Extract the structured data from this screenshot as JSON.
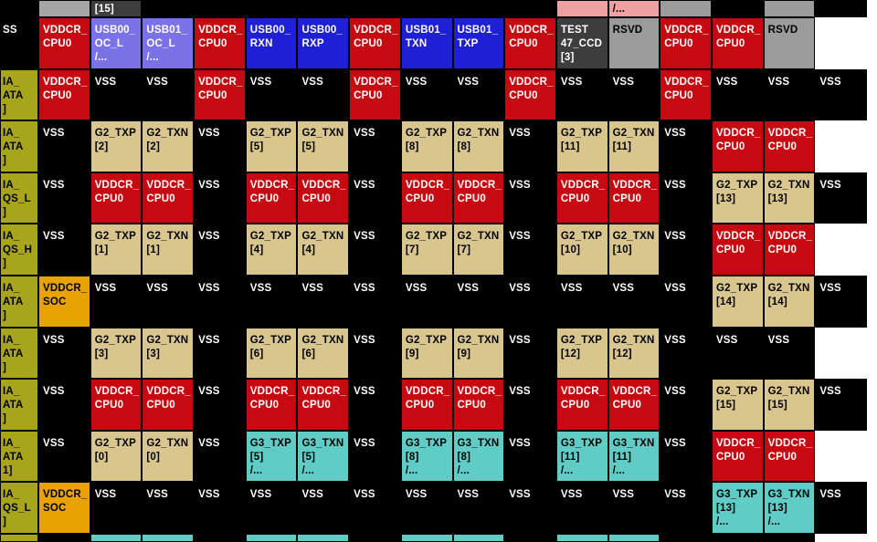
{
  "palette": {
    "red": "#c70a12",
    "blue": "#1f1fd6",
    "purple": "#7c72e8",
    "tan": "#d9c68f",
    "teal": "#5fccc6",
    "olive": "#a8a41c",
    "orange": "#e8a201",
    "gray": "#9b9b9b",
    "gray_light": "#a5a5a5",
    "dark": "#3d3d3d",
    "pink": "#efa0a0",
    "black": "#000000",
    "white": "#ffffff"
  },
  "light_text_colors": [
    "red",
    "blue",
    "purple",
    "dark",
    "black"
  ],
  "grid": {
    "columns": 17,
    "rows": [
      [
        [
          "black",
          ""
        ],
        [
          "gray_light",
          ""
        ],
        [
          "dark",
          "[15]"
        ],
        [
          "black",
          ""
        ],
        [
          "black",
          ""
        ],
        [
          "black",
          ""
        ],
        [
          "black",
          ""
        ],
        [
          "black",
          ""
        ],
        [
          "black",
          ""
        ],
        [
          "black",
          ""
        ],
        [
          "black",
          ""
        ],
        [
          "pink",
          ""
        ],
        [
          "pink",
          "/..."
        ],
        [
          "gray",
          ""
        ],
        [
          "black",
          ""
        ],
        [
          "gray",
          ""
        ],
        [
          "black",
          ""
        ]
      ],
      [
        [
          "black",
          "SS"
        ],
        [
          "red",
          "VDDCR_\nCPU0"
        ],
        [
          "purple",
          "USB00_\nOC_L\n/..."
        ],
        [
          "purple",
          "USB01_\nOC_L\n/..."
        ],
        [
          "red",
          "VDDCR_\nCPU0"
        ],
        [
          "blue",
          "USB00_\nRXN"
        ],
        [
          "blue",
          "USB00_\nRXP"
        ],
        [
          "red",
          "VDDCR_\nCPU0"
        ],
        [
          "blue",
          "USB01_\nTXN"
        ],
        [
          "blue",
          "USB01_\nTXP"
        ],
        [
          "red",
          "VDDCR_\nCPU0"
        ],
        [
          "dark",
          "TEST\n47_CCD\n[3]"
        ],
        [
          "gray",
          "RSVD"
        ],
        [
          "red",
          "VDDCR_\nCPU0"
        ],
        [
          "red",
          "VDDCR_\nCPU0"
        ],
        [
          "gray",
          "RSVD"
        ],
        [
          "white",
          ""
        ]
      ],
      [
        [
          "olive",
          "IA_\nATA\n]"
        ],
        [
          "red",
          "VDDCR_\nCPU0"
        ],
        [
          "black",
          "VSS"
        ],
        [
          "black",
          "VSS"
        ],
        [
          "red",
          "VDDCR_\nCPU0"
        ],
        [
          "black",
          "VSS"
        ],
        [
          "black",
          "VSS"
        ],
        [
          "red",
          "VDDCR_\nCPU0"
        ],
        [
          "black",
          "VSS"
        ],
        [
          "black",
          "VSS"
        ],
        [
          "red",
          "VDDCR_\nCPU0"
        ],
        [
          "black",
          "VSS"
        ],
        [
          "black",
          "VSS"
        ],
        [
          "red",
          "VDDCR_\nCPU0"
        ],
        [
          "black",
          "VSS"
        ],
        [
          "black",
          "VSS"
        ],
        [
          "black",
          "VSS"
        ]
      ],
      [
        [
          "olive",
          "IA_\nATA\n]"
        ],
        [
          "black",
          "VSS"
        ],
        [
          "tan",
          "G2_TXP\n[2]"
        ],
        [
          "tan",
          "G2_TXN\n[2]"
        ],
        [
          "black",
          "VSS"
        ],
        [
          "tan",
          "G2_TXP\n[5]"
        ],
        [
          "tan",
          "G2_TXN\n[5]"
        ],
        [
          "black",
          "VSS"
        ],
        [
          "tan",
          "G2_TXP\n[8]"
        ],
        [
          "tan",
          "G2_TXN\n[8]"
        ],
        [
          "black",
          "VSS"
        ],
        [
          "tan",
          "G2_TXP\n[11]"
        ],
        [
          "tan",
          "G2_TXN\n[11]"
        ],
        [
          "black",
          "VSS"
        ],
        [
          "red",
          "VDDCR_\nCPU0"
        ],
        [
          "red",
          "VDDCR_\nCPU0"
        ],
        [
          "white",
          ""
        ]
      ],
      [
        [
          "olive",
          "IA_\nQS_L\n]"
        ],
        [
          "black",
          "VSS"
        ],
        [
          "red",
          "VDDCR_\nCPU0"
        ],
        [
          "red",
          "VDDCR_\nCPU0"
        ],
        [
          "black",
          "VSS"
        ],
        [
          "red",
          "VDDCR_\nCPU0"
        ],
        [
          "red",
          "VDDCR_\nCPU0"
        ],
        [
          "black",
          "VSS"
        ],
        [
          "red",
          "VDDCR_\nCPU0"
        ],
        [
          "red",
          "VDDCR_\nCPU0"
        ],
        [
          "black",
          "VSS"
        ],
        [
          "red",
          "VDDCR_\nCPU0"
        ],
        [
          "red",
          "VDDCR_\nCPU0"
        ],
        [
          "black",
          "VSS"
        ],
        [
          "tan",
          "G2_TXP\n[13]"
        ],
        [
          "tan",
          "G2_TXN\n[13]"
        ],
        [
          "black",
          "VSS"
        ]
      ],
      [
        [
          "olive",
          "IA_\nQS_H\n]"
        ],
        [
          "black",
          "VSS"
        ],
        [
          "tan",
          "G2_TXP\n[1]"
        ],
        [
          "tan",
          "G2_TXN\n[1]"
        ],
        [
          "black",
          "VSS"
        ],
        [
          "tan",
          "G2_TXP\n[4]"
        ],
        [
          "tan",
          "G2_TXN\n[4]"
        ],
        [
          "black",
          "VSS"
        ],
        [
          "tan",
          "G2_TXP\n[7]"
        ],
        [
          "tan",
          "G2_TXN\n[7]"
        ],
        [
          "black",
          "VSS"
        ],
        [
          "tan",
          "G2_TXP\n[10]"
        ],
        [
          "tan",
          "G2_TXN\n[10]"
        ],
        [
          "black",
          "VSS"
        ],
        [
          "red",
          "VDDCR_\nCPU0"
        ],
        [
          "red",
          "VDDCR_\nCPU0"
        ],
        [
          "white",
          ""
        ]
      ],
      [
        [
          "olive",
          "IA_\nATA\n]"
        ],
        [
          "orange",
          "VDDCR_\nSOC"
        ],
        [
          "black",
          "VSS"
        ],
        [
          "black",
          "VSS"
        ],
        [
          "black",
          "VSS"
        ],
        [
          "black",
          "VSS"
        ],
        [
          "black",
          "VSS"
        ],
        [
          "black",
          "VSS"
        ],
        [
          "black",
          "VSS"
        ],
        [
          "black",
          "VSS"
        ],
        [
          "black",
          "VSS"
        ],
        [
          "black",
          "VSS"
        ],
        [
          "black",
          "VSS"
        ],
        [
          "black",
          "VSS"
        ],
        [
          "tan",
          "G2_TXP\n[14]"
        ],
        [
          "tan",
          "G2_TXN\n[14]"
        ],
        [
          "black",
          "VSS"
        ]
      ],
      [
        [
          "olive",
          "IA_\nATA\n]"
        ],
        [
          "black",
          "VSS"
        ],
        [
          "tan",
          "G2_TXP\n[3]"
        ],
        [
          "tan",
          "G2_TXN\n[3]"
        ],
        [
          "black",
          "VSS"
        ],
        [
          "tan",
          "G2_TXP\n[6]"
        ],
        [
          "tan",
          "G2_TXN\n[6]"
        ],
        [
          "black",
          "VSS"
        ],
        [
          "tan",
          "G2_TXP\n[9]"
        ],
        [
          "tan",
          "G2_TXN\n[9]"
        ],
        [
          "black",
          "VSS"
        ],
        [
          "tan",
          "G2_TXP\n[12]"
        ],
        [
          "tan",
          "G2_TXN\n[12]"
        ],
        [
          "black",
          "VSS"
        ],
        [
          "black",
          "VSS"
        ],
        [
          "black",
          "VSS"
        ],
        [
          "white",
          ""
        ]
      ],
      [
        [
          "olive",
          "IA_\nATA\n]"
        ],
        [
          "black",
          "VSS"
        ],
        [
          "red",
          "VDDCR_\nCPU0"
        ],
        [
          "red",
          "VDDCR_\nCPU0"
        ],
        [
          "black",
          "VSS"
        ],
        [
          "red",
          "VDDCR_\nCPU0"
        ],
        [
          "red",
          "VDDCR_\nCPU0"
        ],
        [
          "black",
          "VSS"
        ],
        [
          "red",
          "VDDCR_\nCPU0"
        ],
        [
          "red",
          "VDDCR_\nCPU0"
        ],
        [
          "black",
          "VSS"
        ],
        [
          "red",
          "VDDCR_\nCPU0"
        ],
        [
          "red",
          "VDDCR_\nCPU0"
        ],
        [
          "black",
          "VSS"
        ],
        [
          "tan",
          "G2_TXP\n[15]"
        ],
        [
          "tan",
          "G2_TXN\n[15]"
        ],
        [
          "black",
          "VSS"
        ]
      ],
      [
        [
          "olive",
          "IA_\nATA\n1]"
        ],
        [
          "black",
          "VSS"
        ],
        [
          "tan",
          "G2_TXP\n[0]"
        ],
        [
          "tan",
          "G2_TXN\n[0]"
        ],
        [
          "black",
          "VSS"
        ],
        [
          "teal",
          "G3_TXP\n[5]\n/..."
        ],
        [
          "teal",
          "G3_TXN\n[5]\n/..."
        ],
        [
          "black",
          "VSS"
        ],
        [
          "teal",
          "G3_TXP\n[8]\n/..."
        ],
        [
          "teal",
          "G3_TXN\n[8]\n/..."
        ],
        [
          "black",
          "VSS"
        ],
        [
          "teal",
          "G3_TXP\n[11]\n/..."
        ],
        [
          "teal",
          "G3_TXN\n[11]\n/..."
        ],
        [
          "black",
          "VSS"
        ],
        [
          "red",
          "VDDCR_\nCPU0"
        ],
        [
          "red",
          "VDDCR_\nCPU0"
        ],
        [
          "white",
          ""
        ]
      ],
      [
        [
          "olive",
          "IA_\nQS_L\n]"
        ],
        [
          "orange",
          "VDDCR_\nSOC"
        ],
        [
          "black",
          "VSS"
        ],
        [
          "black",
          "VSS"
        ],
        [
          "black",
          "VSS"
        ],
        [
          "black",
          "VSS"
        ],
        [
          "black",
          "VSS"
        ],
        [
          "black",
          "VSS"
        ],
        [
          "black",
          "VSS"
        ],
        [
          "black",
          "VSS"
        ],
        [
          "black",
          "VSS"
        ],
        [
          "black",
          "VSS"
        ],
        [
          "black",
          "VSS"
        ],
        [
          "black",
          "VSS"
        ],
        [
          "teal",
          "G3_TXP\n[13]\n/..."
        ],
        [
          "teal",
          "G3_TXN\n[13]\n/..."
        ],
        [
          "black",
          "VSS"
        ]
      ],
      [
        [
          "olive",
          ""
        ],
        [
          "black",
          ""
        ],
        [
          "teal",
          ""
        ],
        [
          "teal",
          ""
        ],
        [
          "black",
          ""
        ],
        [
          "teal",
          ""
        ],
        [
          "teal",
          ""
        ],
        [
          "black",
          ""
        ],
        [
          "teal",
          ""
        ],
        [
          "teal",
          ""
        ],
        [
          "black",
          ""
        ],
        [
          "teal",
          ""
        ],
        [
          "teal",
          ""
        ],
        [
          "black",
          ""
        ],
        [
          "black",
          ""
        ],
        [
          "black",
          ""
        ],
        [
          "white",
          ""
        ]
      ]
    ]
  }
}
